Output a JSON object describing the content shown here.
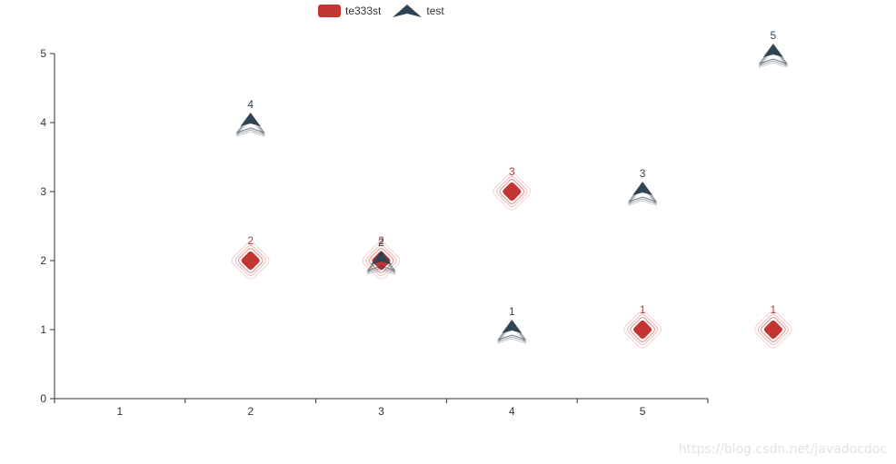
{
  "legend": {
    "items": [
      {
        "name": "te333st",
        "color": "#c23531",
        "icon": "rounded-rect"
      },
      {
        "name": "test",
        "color": "#2f4554",
        "icon": "arrow"
      }
    ]
  },
  "watermark": "https://blog.csdn.net/javadocdoc",
  "chart_data": {
    "type": "scatter",
    "title": "",
    "xlabel": "",
    "ylabel": "",
    "categories": [
      "1",
      "2",
      "3",
      "4",
      "5"
    ],
    "ylim": [
      0,
      5
    ],
    "yticks": [
      0,
      1,
      2,
      3,
      4,
      5
    ],
    "grid": false,
    "legend_position": "top-left",
    "series": [
      {
        "name": "te333st",
        "symbol": "rounded-rect-ripple",
        "color": "#c23531",
        "points": [
          [
            2,
            2
          ],
          [
            3,
            2
          ],
          [
            4,
            3
          ],
          [
            5,
            1
          ],
          [
            6,
            1
          ]
        ],
        "labels": [
          "2",
          "2",
          "3",
          "1",
          "1"
        ]
      },
      {
        "name": "test",
        "symbol": "arrow",
        "color": "#2f4554",
        "points": [
          [
            2,
            4
          ],
          [
            3,
            2
          ],
          [
            4,
            1
          ],
          [
            5,
            3
          ],
          [
            6,
            5
          ]
        ],
        "labels": [
          "4",
          "2",
          "1",
          "3",
          "5"
        ]
      }
    ]
  }
}
